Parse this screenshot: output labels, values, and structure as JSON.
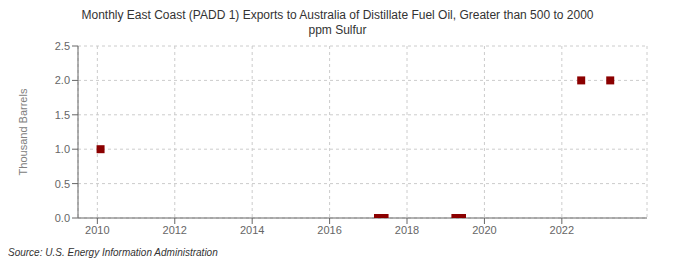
{
  "chart_data": {
    "type": "scatter",
    "title": "Monthly East Coast (PADD 1) Exports to Australia of Distillate Fuel Oil, Greater than 500 to 2000\nppm Sulfur",
    "ylabel": "Thousand Barrels",
    "annotations": [
      "Source: U.S. Energy Information Administration"
    ],
    "x": [
      2010.083,
      2017.25,
      2017.42,
      2019.25,
      2019.42,
      2022.5,
      2023.25
    ],
    "values": [
      1.0,
      0.0,
      0.0,
      0.0,
      0.0,
      2.0,
      2.0
    ],
    "color": "#8b0000",
    "marker": "square",
    "xlim": [
      2009.5,
      2024.2
    ],
    "ylim": [
      0.0,
      2.5
    ],
    "xticks": [
      2010,
      2012,
      2014,
      2016,
      2018,
      2020,
      2022
    ],
    "yticks": [
      {
        "value": 0,
        "label": "0.0"
      },
      0.5,
      {
        "value": 1,
        "label": "1.0"
      },
      1.5,
      {
        "value": 2,
        "label": "2.0"
      },
      2.5
    ],
    "grid": true
  }
}
